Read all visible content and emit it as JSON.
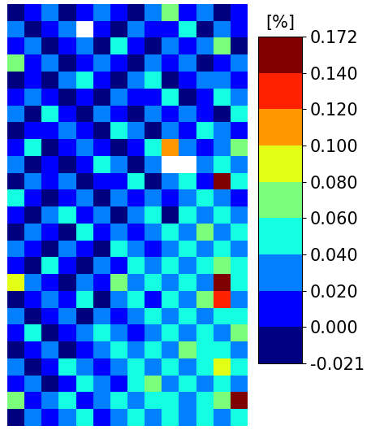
{
  "chart_data": {
    "type": "heatmap",
    "tick_labels": false,
    "color": "jet",
    "cells": [
      [
        -0.01,
        0.01,
        0.03,
        -0.01,
        0.01,
        0.03,
        0.01,
        -0.01,
        0.03,
        0.07,
        0.01,
        0.03,
        -0.01,
        0.01
      ],
      [
        0.03,
        -0.01,
        0.01,
        0.03,
        null,
        0.01,
        -0.01,
        0.03,
        0.01,
        0.01,
        0.05,
        -0.01,
        0.03,
        0.01
      ],
      [
        0.01,
        0.03,
        -0.01,
        0.01,
        0.03,
        -0.01,
        0.05,
        0.01,
        -0.01,
        0.03,
        0.01,
        0.03,
        0.07,
        -0.01
      ],
      [
        0.07,
        0.01,
        0.03,
        -0.01,
        0.01,
        0.03,
        0.01,
        -0.01,
        0.03,
        0.01,
        0.03,
        -0.01,
        0.01,
        0.03
      ],
      [
        -0.01,
        0.01,
        -0.01,
        0.03,
        0.05,
        0.01,
        -0.01,
        0.03,
        0.05,
        -0.01,
        0.01,
        0.03,
        0.03,
        0.01
      ],
      [
        0.01,
        0.03,
        0.01,
        -0.01,
        0.01,
        -0.01,
        0.03,
        0.01,
        0.01,
        0.05,
        -0.01,
        0.01,
        0.05,
        0.03
      ],
      [
        0.03,
        -0.01,
        0.05,
        0.01,
        -0.01,
        0.03,
        0.01,
        -0.01,
        0.03,
        0.01,
        0.03,
        0.01,
        -0.01,
        0.05
      ],
      [
        -0.01,
        0.01,
        0.01,
        0.03,
        0.01,
        -0.01,
        0.05,
        0.03,
        -0.01,
        0.03,
        0.01,
        0.05,
        0.03,
        0.01
      ],
      [
        0.01,
        0.05,
        -0.01,
        0.01,
        0.03,
        0.01,
        -0.01,
        0.01,
        0.05,
        0.11,
        0.03,
        0.01,
        0.03,
        0.07
      ],
      [
        0.03,
        -0.01,
        0.01,
        -0.01,
        0.01,
        0.05,
        0.03,
        -0.01,
        0.03,
        null,
        null,
        0.03,
        0.05,
        0.03
      ],
      [
        -0.01,
        0.03,
        0.01,
        0.03,
        -0.01,
        0.01,
        0.01,
        0.05,
        -0.01,
        0.03,
        0.05,
        0.01,
        0.16,
        0.05
      ],
      [
        0.05,
        0.01,
        -0.01,
        0.01,
        0.03,
        -0.01,
        0.03,
        0.01,
        0.03,
        0.01,
        0.03,
        0.05,
        0.03,
        0.01
      ],
      [
        0.01,
        -0.01,
        0.03,
        0.05,
        0.01,
        0.03,
        -0.01,
        0.03,
        0.05,
        -0.01,
        0.05,
        0.03,
        0.05,
        0.03
      ],
      [
        -0.01,
        0.03,
        0.01,
        -0.01,
        0.05,
        0.01,
        0.03,
        0.01,
        0.03,
        0.05,
        0.03,
        0.07,
        0.03,
        0.05
      ],
      [
        0.03,
        0.01,
        -0.01,
        0.03,
        0.01,
        -0.01,
        0.05,
        0.03,
        0.01,
        0.03,
        0.05,
        0.03,
        0.05,
        0.03
      ],
      [
        0.01,
        -0.01,
        0.05,
        0.01,
        -0.01,
        0.03,
        0.01,
        0.05,
        0.03,
        0.05,
        0.03,
        0.05,
        0.07,
        0.05
      ],
      [
        0.09,
        0.03,
        0.01,
        -0.01,
        0.03,
        0.01,
        0.07,
        0.03,
        0.05,
        0.03,
        0.05,
        0.03,
        0.16,
        0.05
      ],
      [
        -0.01,
        0.01,
        0.03,
        0.01,
        0.05,
        -0.01,
        0.03,
        0.05,
        0.01,
        0.05,
        0.03,
        0.07,
        0.13,
        0.03
      ],
      [
        0.03,
        -0.01,
        0.01,
        0.03,
        -0.01,
        0.03,
        0.01,
        0.03,
        0.05,
        0.03,
        0.05,
        0.03,
        0.05,
        0.05
      ],
      [
        0.01,
        0.05,
        -0.01,
        0.01,
        0.03,
        0.05,
        0.03,
        0.01,
        0.03,
        0.05,
        0.03,
        0.05,
        0.03,
        0.07
      ],
      [
        -0.01,
        0.01,
        0.03,
        -0.01,
        0.01,
        0.03,
        0.05,
        0.03,
        0.05,
        0.03,
        0.07,
        0.05,
        0.05,
        0.03
      ],
      [
        0.03,
        -0.01,
        0.01,
        0.05,
        0.03,
        0.01,
        0.03,
        0.05,
        0.03,
        0.05,
        0.03,
        0.05,
        0.09,
        0.05
      ],
      [
        0.01,
        0.03,
        -0.01,
        0.01,
        0.05,
        0.03,
        0.01,
        0.05,
        0.07,
        0.03,
        0.05,
        0.03,
        0.05,
        0.03
      ],
      [
        0.07,
        0.01,
        0.03,
        0.05,
        0.01,
        0.03,
        0.05,
        0.03,
        0.05,
        0.05,
        0.03,
        0.05,
        0.07,
        0.16
      ],
      [
        -0.01,
        0.03,
        0.01,
        0.03,
        0.05,
        0.01,
        0.03,
        0.05,
        0.03,
        0.05,
        0.03,
        0.05,
        0.03,
        0.05
      ]
    ],
    "color_bar": {
      "label": "[%]",
      "range": [
        -0.021,
        0.172
      ],
      "ticks": [
        {
          "value": -0.021,
          "label": "-0.021"
        },
        {
          "value": 0.0,
          "label": "0.000"
        },
        {
          "value": 0.02,
          "label": "0.020"
        },
        {
          "value": 0.04,
          "label": "0.040"
        },
        {
          "value": 0.06,
          "label": "0.060"
        },
        {
          "value": 0.08,
          "label": "0.080"
        },
        {
          "value": 0.1,
          "label": "0.100"
        },
        {
          "value": 0.12,
          "label": "0.120"
        },
        {
          "value": 0.14,
          "label": "0.140"
        },
        {
          "value": 0.172,
          "label": "0.172"
        }
      ]
    }
  }
}
